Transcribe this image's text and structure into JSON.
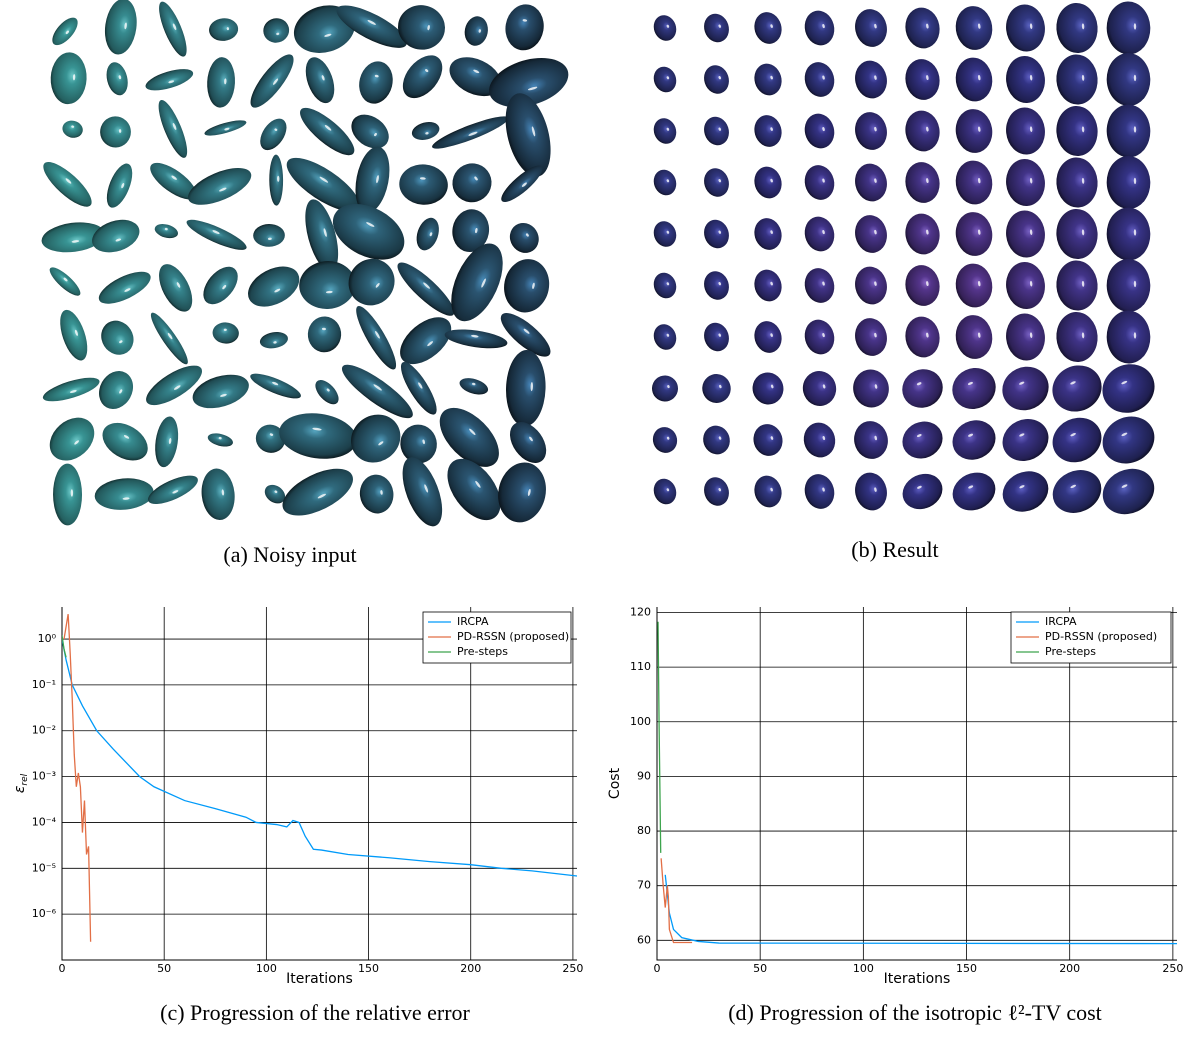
{
  "images": [
    {
      "caption": "(a) Noisy input"
    },
    {
      "caption": "(b) Result"
    }
  ],
  "chart_data": [
    {
      "type": "line",
      "caption": "(c) Progression of the relative error",
      "xlabel": "Iterations",
      "ylabel": "ε",
      "ylabel_sub": "rel",
      "yscale": "log",
      "grid": true,
      "legend": "upper right",
      "xlim": [
        0,
        252
      ],
      "xticks": [
        0,
        50,
        100,
        150,
        200,
        250
      ],
      "ylim": [
        1e-07,
        5
      ],
      "yticks": [
        {
          "value": 1,
          "label": "10⁰"
        },
        {
          "value": 0.1,
          "label": "10⁻¹"
        },
        {
          "value": 0.01,
          "label": "10⁻²"
        },
        {
          "value": 0.001,
          "label": "10⁻³"
        },
        {
          "value": 0.0001,
          "label": "10⁻⁴"
        },
        {
          "value": 1e-05,
          "label": "10⁻⁵"
        },
        {
          "value": 1e-06,
          "label": "10⁻⁶"
        }
      ],
      "series": [
        {
          "name": "IRCPA",
          "color": "#009af9",
          "x": [
            0,
            2,
            5,
            10,
            17,
            25,
            38,
            45,
            60,
            75,
            90,
            95,
            105,
            110,
            113,
            116,
            119,
            123,
            127,
            140,
            160,
            180,
            200,
            215,
            230,
            252
          ],
          "values": [
            1,
            0.35,
            0.1,
            0.035,
            0.01,
            0.004,
            0.001,
            0.0006,
            0.0003,
            0.0002,
            0.00013,
            0.0001,
            9e-05,
            8e-05,
            0.00011,
            0.0001,
            5e-05,
            2.6e-05,
            2.5e-05,
            2e-05,
            1.7e-05,
            1.4e-05,
            1.2e-05,
            1e-05,
            8.8e-06,
            6.8e-06
          ]
        },
        {
          "name": "PD-RSSN (proposed)",
          "color": "#e26f46",
          "x": [
            1,
            3,
            4,
            5,
            6,
            7,
            8,
            9,
            10,
            11,
            12,
            13,
            14
          ],
          "values": [
            1,
            3.5,
            0.5,
            0.05,
            0.003,
            0.0006,
            0.0012,
            0.0006,
            6e-05,
            0.0003,
            2e-05,
            3e-05,
            2.5e-07
          ]
        },
        {
          "name": "Pre-steps",
          "color": "#3da44d",
          "x": [
            0,
            1,
            2
          ],
          "values": [
            1.2,
            0.6,
            0.4
          ]
        }
      ]
    },
    {
      "type": "line",
      "caption": "(d) Progression of the isotropic ℓ²-TV cost",
      "xlabel": "Iterations",
      "ylabel": "Cost",
      "grid": true,
      "legend": "upper right",
      "xlim": [
        0,
        252
      ],
      "xticks": [
        0,
        50,
        100,
        150,
        200,
        250
      ],
      "ylim": [
        56.4,
        121
      ],
      "yticks": [
        60,
        70,
        80,
        90,
        100,
        110,
        120
      ],
      "series": [
        {
          "name": "IRCPA",
          "color": "#009af9",
          "x": [
            4,
            6,
            8,
            12,
            20,
            30,
            252
          ],
          "values": [
            72,
            65,
            62,
            60.5,
            59.8,
            59.5,
            59.4
          ]
        },
        {
          "name": "PD-RSSN (proposed)",
          "color": "#e26f46",
          "x": [
            2,
            3,
            4,
            5,
            5.5,
            6,
            8,
            17
          ],
          "values": [
            75,
            70,
            66,
            70,
            68,
            62,
            59.6,
            59.6
          ]
        },
        {
          "name": "Pre-steps",
          "color": "#3da44d",
          "x": [
            0.5,
            1,
            1.8
          ],
          "values": [
            118.3,
            100,
            76
          ]
        }
      ]
    }
  ]
}
